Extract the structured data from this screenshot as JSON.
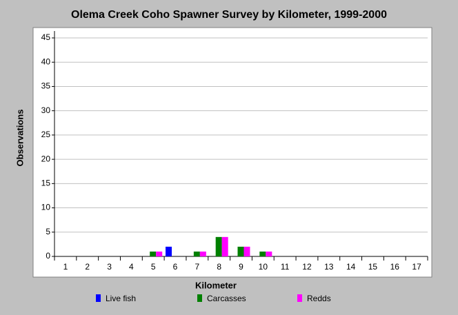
{
  "chart_data": {
    "type": "bar",
    "title": "Olema Creek Coho Spawner Survey by Kilometer, 1999-2000",
    "x_label": "Kilometer",
    "y_label": "Observations",
    "categories": [
      "1",
      "2",
      "3",
      "4",
      "5",
      "6",
      "7",
      "8",
      "9",
      "10",
      "11",
      "12",
      "13",
      "14",
      "15",
      "16",
      "17"
    ],
    "series": [
      {
        "name": "Live fish",
        "color": "#0000ff",
        "values": [
          0,
          0,
          0,
          0,
          0,
          2,
          0,
          0,
          0,
          0,
          0,
          0,
          0,
          0,
          0,
          0,
          0
        ]
      },
      {
        "name": "Carcasses",
        "color": "#008000",
        "values": [
          0,
          0,
          0,
          0,
          1,
          0,
          1,
          4,
          2,
          1,
          0,
          0,
          0,
          0,
          0,
          0,
          0
        ]
      },
      {
        "name": "Redds",
        "color": "#ff00ff",
        "values": [
          0,
          0,
          0,
          0,
          1,
          0,
          1,
          4,
          2,
          1,
          0,
          0,
          0,
          0,
          0,
          0,
          0
        ]
      }
    ],
    "ylim": [
      0,
      45
    ],
    "yticks": [
      0,
      5,
      10,
      15,
      20,
      25,
      30,
      35,
      40,
      45
    ],
    "grid": true
  }
}
